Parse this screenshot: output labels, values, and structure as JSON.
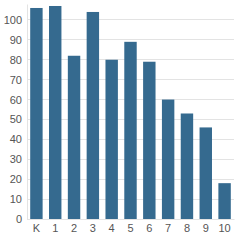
{
  "chart_data": {
    "type": "bar",
    "categories": [
      "K",
      "1",
      "2",
      "3",
      "4",
      "5",
      "6",
      "7",
      "8",
      "9",
      "10"
    ],
    "values": [
      106,
      107,
      82,
      104,
      80,
      89,
      79,
      60,
      53,
      46,
      18
    ],
    "color": "#356a8f",
    "ylim": [
      0,
      108
    ],
    "yticks": [
      0,
      10,
      20,
      30,
      40,
      50,
      60,
      70,
      80,
      90,
      100
    ],
    "grid": true
  }
}
